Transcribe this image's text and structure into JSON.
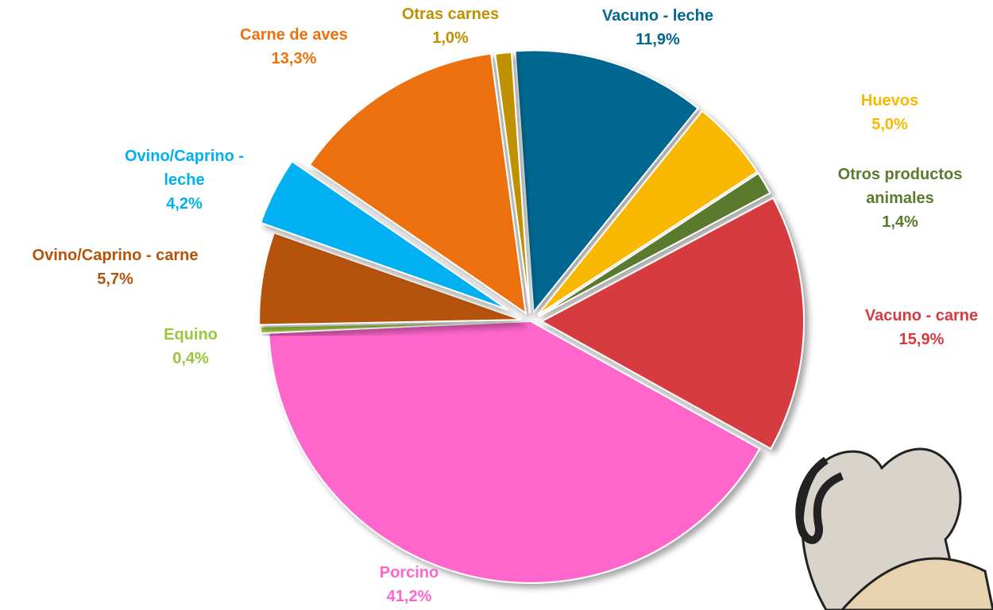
{
  "chart_data": {
    "type": "pie",
    "categories": [
      "Vacuno - leche",
      "Huevos",
      "Otros productos animales",
      "Vacuno - carne",
      "Porcino",
      "Equino",
      "Ovino/Caprino - carne",
      "Ovino/Caprino - leche",
      "Carne de aves",
      "Otras carnes"
    ],
    "values": [
      11.9,
      5.0,
      1.4,
      15.9,
      41.2,
      0.4,
      5.7,
      4.2,
      13.3,
      1.0
    ],
    "value_labels": [
      "11,9%",
      "5,0%",
      "1,4%",
      "15,9%",
      "41,2%",
      "0,4%",
      "5,7%",
      "4,2%",
      "13,3%",
      "1,0%"
    ],
    "colors": [
      "#006890",
      "#f9b800",
      "#5a7a2e",
      "#d63a3f",
      "#ff66cc",
      "#9bc53d",
      "#b5530a",
      "#00b0f0",
      "#ec700c",
      "#bf9000"
    ]
  }
}
